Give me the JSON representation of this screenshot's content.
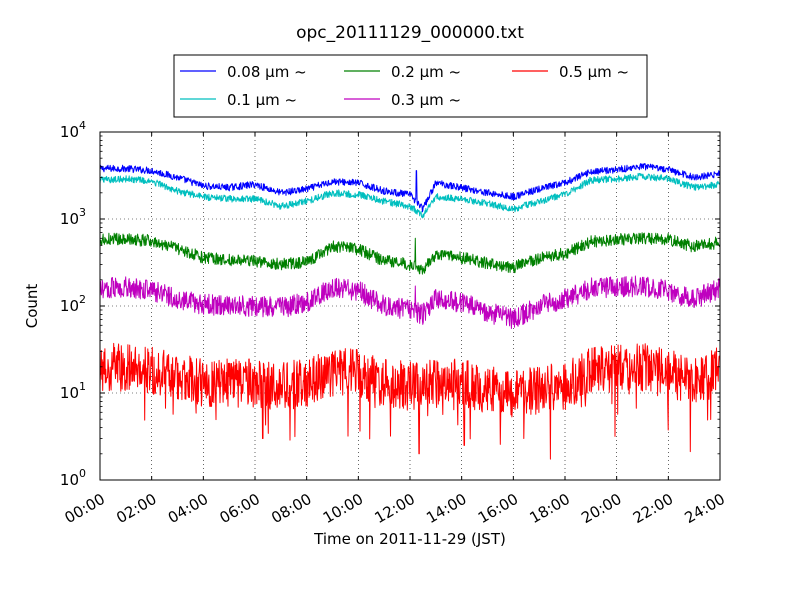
{
  "chart_data": {
    "type": "line",
    "title": "opc_20111129_000000.txt",
    "xlabel": "Time on 2011-11-29 (JST)",
    "ylabel": "Count",
    "x_range_hours": [
      0,
      24
    ],
    "yscale": "log",
    "ylim": [
      1,
      10000
    ],
    "grid": true,
    "legend_position": "top-center",
    "xticks": [
      "00:00",
      "02:00",
      "04:00",
      "06:00",
      "08:00",
      "10:00",
      "12:00",
      "14:00",
      "16:00",
      "18:00",
      "20:00",
      "22:00",
      "24:00"
    ],
    "yticks": [
      {
        "value": 1,
        "exp": "0"
      },
      {
        "value": 10,
        "exp": "1"
      },
      {
        "value": 100,
        "exp": "2"
      },
      {
        "value": 1000,
        "exp": "3"
      },
      {
        "value": 10000,
        "exp": "4"
      }
    ],
    "ytick_base": "10",
    "x": [
      0,
      1,
      2,
      3,
      4,
      5,
      6,
      7,
      8,
      9,
      10,
      11,
      12,
      12.5,
      13,
      14,
      15,
      16,
      17,
      18,
      19,
      20,
      21,
      22,
      23,
      24
    ],
    "series": [
      {
        "name": "0.08 μm ~",
        "color": "#0000ff",
        "noise": 0.04,
        "values": [
          3800,
          3800,
          3600,
          3000,
          2400,
          2300,
          2500,
          2000,
          2200,
          2700,
          2600,
          2100,
          1900,
          1300,
          2600,
          2300,
          2000,
          1800,
          2200,
          2600,
          3500,
          3700,
          4000,
          3700,
          3000,
          3300
        ],
        "spikes": [
          {
            "x": 12.25,
            "value": 3600
          }
        ]
      },
      {
        "name": "0.1 μm ~",
        "color": "#00bfbf",
        "noise": 0.04,
        "values": [
          2800,
          2900,
          2700,
          2100,
          1800,
          1700,
          1700,
          1400,
          1600,
          2000,
          1900,
          1600,
          1400,
          1100,
          1800,
          1700,
          1500,
          1300,
          1600,
          1900,
          2800,
          2900,
          3100,
          2900,
          2300,
          2500
        ],
        "spikes": []
      },
      {
        "name": "0.2 μm ~",
        "color": "#008000",
        "noise": 0.07,
        "values": [
          580,
          590,
          560,
          450,
          360,
          340,
          330,
          300,
          320,
          480,
          450,
          330,
          300,
          260,
          390,
          360,
          310,
          280,
          350,
          400,
          550,
          580,
          600,
          580,
          480,
          540
        ],
        "spikes": [
          {
            "x": 12.2,
            "value": 600
          }
        ]
      },
      {
        "name": "0.3 μm ~",
        "color": "#bf00bf",
        "noise": 0.12,
        "values": [
          160,
          165,
          150,
          120,
          105,
          100,
          100,
          95,
          110,
          165,
          150,
          100,
          90,
          80,
          120,
          110,
          85,
          70,
          100,
          120,
          160,
          165,
          170,
          150,
          120,
          160
        ],
        "spikes": [
          {
            "x": 12.2,
            "value": 170
          }
        ]
      },
      {
        "name": "0.5 μm ~",
        "color": "#ff0000",
        "noise": 0.28,
        "values": [
          19,
          20,
          18,
          15,
          13,
          13,
          13,
          12,
          13,
          17,
          17,
          13,
          12,
          12,
          14,
          13,
          11,
          10,
          11,
          12,
          18,
          19,
          20,
          17,
          14,
          19
        ],
        "spikes": [
          {
            "x": 6.3,
            "value": 3
          },
          {
            "x": 12.35,
            "value": 2
          },
          {
            "x": 14.1,
            "value": 2.5
          },
          {
            "x": 16.4,
            "value": 3
          }
        ]
      }
    ]
  }
}
